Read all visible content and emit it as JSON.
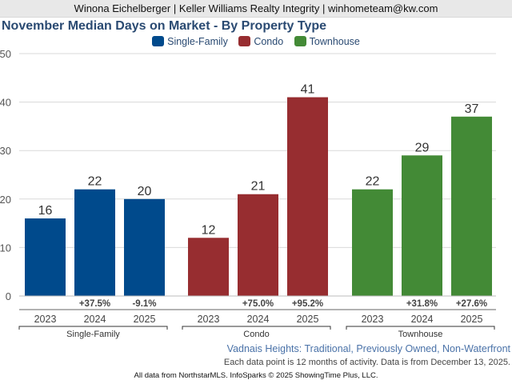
{
  "header": {
    "agent_line": "Winona Eichelberger | Keller Williams Realty Integrity | winhometeam@kw.com"
  },
  "chart_data": {
    "type": "bar",
    "title": "November Median Days on Market - By Property Type",
    "xlabel": "",
    "ylabel": "",
    "ylim": [
      0,
      50
    ],
    "yticks": [
      0,
      10,
      20,
      30,
      40,
      50
    ],
    "grid": true,
    "legend_position": "top-center",
    "categories": [
      "2023",
      "2024",
      "2025"
    ],
    "series": [
      {
        "name": "Single-Family",
        "color": "#004a8c",
        "values": [
          16,
          22,
          20
        ],
        "value_labels": [
          "16",
          "22",
          "20"
        ],
        "changes": [
          "",
          "+37.5%",
          "-9.1%"
        ]
      },
      {
        "name": "Condo",
        "color": "#972d30",
        "values": [
          12,
          21,
          41
        ],
        "value_labels": [
          "12",
          "21",
          "41"
        ],
        "changes": [
          "",
          "+75.0%",
          "+95.2%"
        ]
      },
      {
        "name": "Townhouse",
        "color": "#438a36",
        "values": [
          22,
          29,
          37
        ],
        "value_labels": [
          "22",
          "29",
          "37"
        ],
        "changes": [
          "",
          "+31.8%",
          "+27.6%"
        ]
      }
    ]
  },
  "subtitle": "Vadnais Heights: Traditional, Previously Owned, Non-Waterfront",
  "note": "Each data point is 12 months of activity. Data is from December 13, 2025.",
  "footer": "All data from NorthstarMLS. InfoSparks © 2025 ShowingTime Plus, LLC."
}
